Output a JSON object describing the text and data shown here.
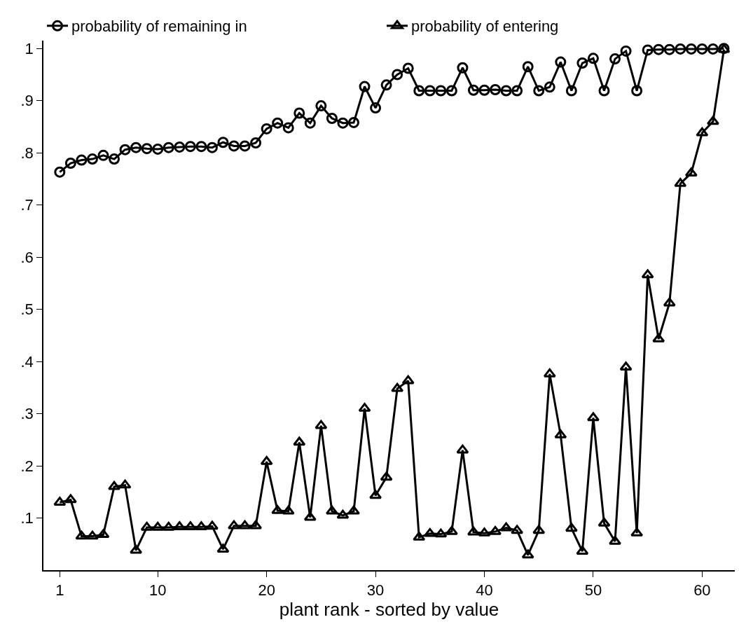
{
  "chart_data": {
    "type": "line",
    "xlabel": "plant rank - sorted by value",
    "x": [
      1,
      2,
      3,
      4,
      5,
      6,
      7,
      8,
      9,
      10,
      11,
      12,
      13,
      14,
      15,
      16,
      17,
      18,
      19,
      20,
      21,
      22,
      23,
      24,
      25,
      26,
      27,
      28,
      29,
      30,
      31,
      32,
      33,
      34,
      35,
      36,
      37,
      38,
      39,
      40,
      41,
      42,
      43,
      44,
      45,
      46,
      47,
      48,
      49,
      50,
      51,
      52,
      53,
      54,
      55,
      56,
      57,
      58,
      59,
      60,
      61,
      62
    ],
    "series": [
      {
        "name": "probability of remaining in",
        "color": "#000000",
        "marker": "circle",
        "values": [
          0.763,
          0.78,
          0.786,
          0.788,
          0.795,
          0.788,
          0.806,
          0.81,
          0.808,
          0.807,
          0.81,
          0.811,
          0.812,
          0.812,
          0.81,
          0.82,
          0.813,
          0.813,
          0.819,
          0.846,
          0.857,
          0.848,
          0.876,
          0.857,
          0.89,
          0.866,
          0.857,
          0.858,
          0.927,
          0.886,
          0.93,
          0.95,
          0.962,
          0.919,
          0.919,
          0.919,
          0.919,
          0.963,
          0.92,
          0.92,
          0.921,
          0.919,
          0.919,
          0.965,
          0.919,
          0.926,
          0.974,
          0.919,
          0.972,
          0.981,
          0.919,
          0.98,
          0.995,
          0.919,
          0.997,
          0.998,
          0.998,
          0.999,
          0.999,
          0.999,
          0.999,
          1.0
        ]
      },
      {
        "name": "probability of entering",
        "color": "#000000",
        "marker": "triangle",
        "values": [
          0.13,
          0.135,
          0.065,
          0.065,
          0.068,
          0.16,
          0.163,
          0.038,
          0.082,
          0.082,
          0.082,
          0.083,
          0.083,
          0.083,
          0.084,
          0.04,
          0.085,
          0.085,
          0.085,
          0.208,
          0.114,
          0.113,
          0.245,
          0.101,
          0.277,
          0.113,
          0.105,
          0.113,
          0.31,
          0.143,
          0.178,
          0.348,
          0.363,
          0.063,
          0.07,
          0.069,
          0.074,
          0.23,
          0.073,
          0.071,
          0.074,
          0.081,
          0.076,
          0.029,
          0.076,
          0.376,
          0.259,
          0.08,
          0.036,
          0.292,
          0.09,
          0.055,
          0.389,
          0.071,
          0.566,
          0.443,
          0.512,
          0.741,
          0.761,
          0.838,
          0.86,
          0.998
        ]
      }
    ],
    "xlim": [
      -0.5,
      63
    ],
    "xticks": [
      1,
      10,
      20,
      30,
      40,
      50,
      60
    ],
    "ylim": [
      0.0,
      1.015
    ],
    "yticks": [
      {
        "value": 0.1,
        "label": ".1"
      },
      {
        "value": 0.2,
        "label": ".2"
      },
      {
        "value": 0.3,
        "label": ".3"
      },
      {
        "value": 0.4,
        "label": ".4"
      },
      {
        "value": 0.5,
        "label": ".5"
      },
      {
        "value": 0.6,
        "label": ".6"
      },
      {
        "value": 0.7,
        "label": ".7"
      },
      {
        "value": 0.8,
        "label": ".8"
      },
      {
        "value": 0.9,
        "label": ".9"
      },
      1
    ],
    "legend": "top",
    "line_style": "solid"
  }
}
